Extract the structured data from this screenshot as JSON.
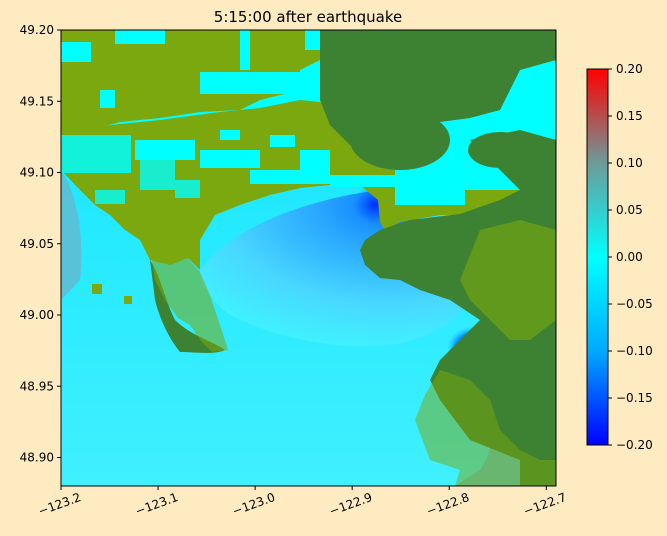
{
  "chart_data": {
    "type": "heatmap",
    "title": "5:15:00 after earthquake",
    "xlabel": "",
    "ylabel": "",
    "xlim": [
      -123.2,
      -122.69
    ],
    "ylim": [
      48.88,
      49.2
    ],
    "x_ticks": [
      -123.2,
      -123.1,
      -123.0,
      -122.9,
      -122.8,
      -122.7
    ],
    "x_tick_labels": [
      "−123.2",
      "−123.1",
      "−123.0",
      "−122.9",
      "−122.8",
      "−122.7"
    ],
    "y_ticks": [
      48.9,
      48.95,
      49.0,
      49.05,
      49.1,
      49.15,
      49.2
    ],
    "y_tick_labels": [
      "48.90",
      "48.95",
      "49.00",
      "49.05",
      "49.10",
      "49.15",
      "49.20"
    ],
    "colorbar": {
      "range": [
        -0.2,
        0.2
      ],
      "ticks": [
        -0.2,
        -0.15,
        -0.1,
        -0.05,
        0.0,
        0.05,
        0.1,
        0.15,
        0.2
      ],
      "tick_labels": [
        "−0.20",
        "−0.15",
        "−0.10",
        "−0.05",
        "0.00",
        "0.05",
        "0.10",
        "0.15",
        "0.20"
      ],
      "colors": [
        "#0000ff",
        "#00b4ff",
        "#00ffff",
        "#7a8c8c",
        "#ff0000"
      ]
    },
    "colors": {
      "background": "#ffebc2",
      "water": "#00ffff",
      "land": "#3c8232",
      "dry_land_overlay": "#7aa80e"
    },
    "grid": false
  }
}
